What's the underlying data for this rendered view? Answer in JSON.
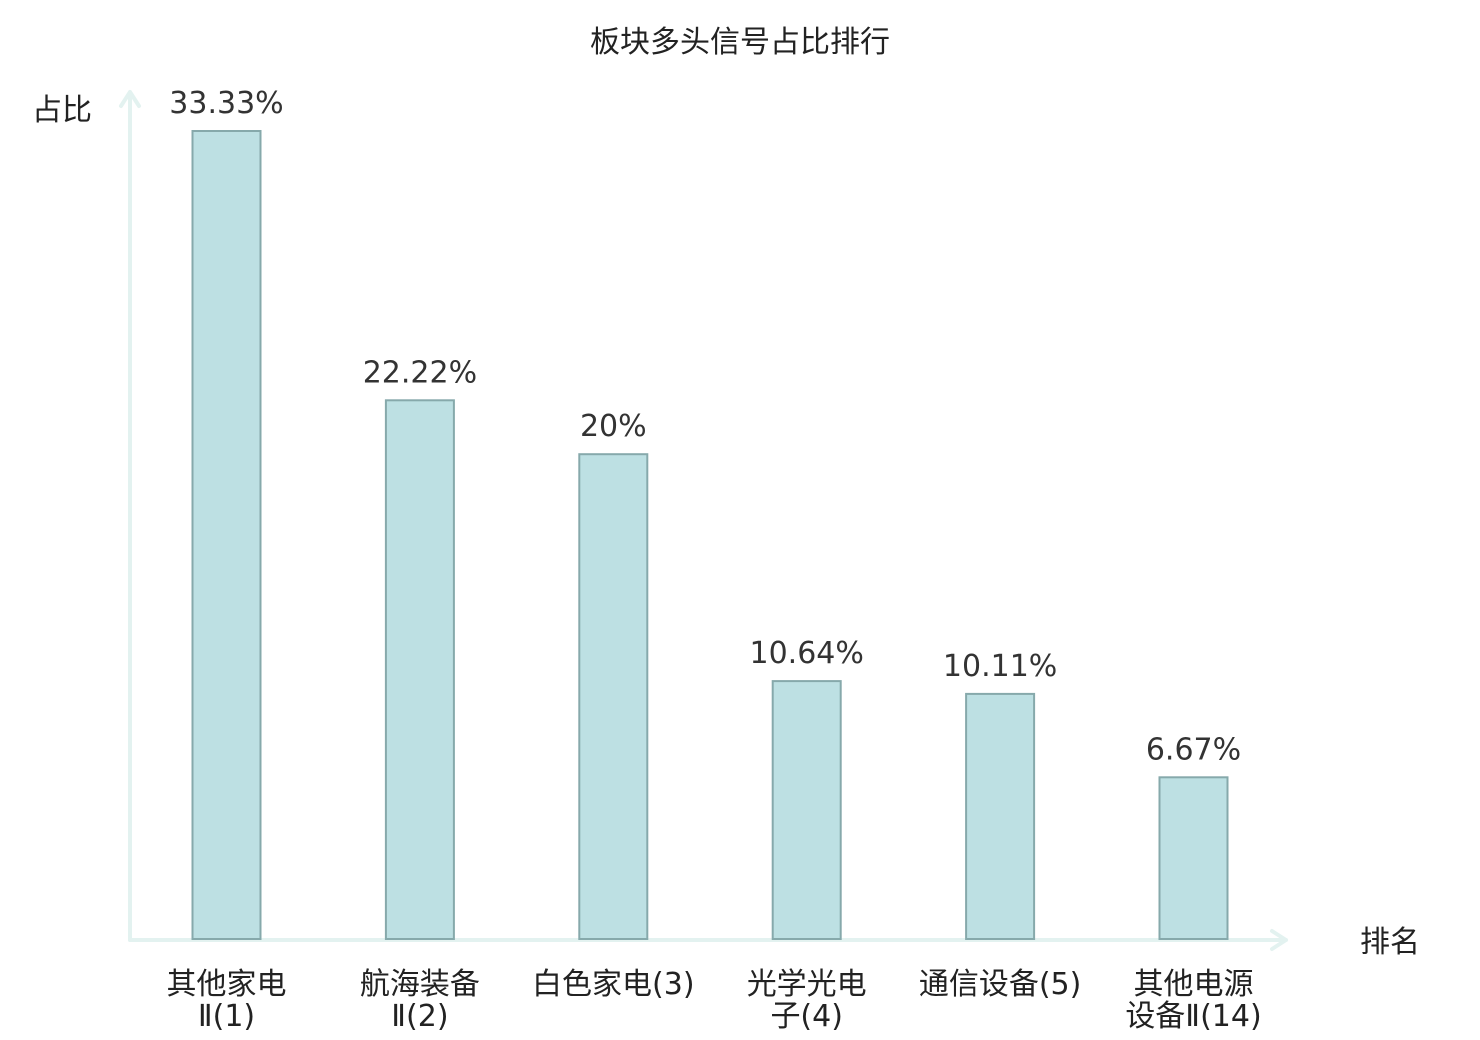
{
  "chart_data": {
    "type": "bar",
    "title": "板块多头信号占比排行",
    "xlabel": "排名",
    "ylabel": "占比",
    "categories": [
      [
        "其他家电",
        "Ⅱ(1)"
      ],
      [
        "航海装备",
        "Ⅱ(2)"
      ],
      [
        "白色家电(3)"
      ],
      [
        "光学光电",
        "子(4)"
      ],
      [
        "通信设备(5)"
      ],
      [
        "其他电源",
        "设备Ⅱ(14)"
      ]
    ],
    "values": [
      33.33,
      22.22,
      20,
      10.64,
      10.11,
      6.67
    ],
    "value_labels": [
      "33.33%",
      "22.22%",
      "20%",
      "10.64%",
      "10.11%",
      "6.67%"
    ],
    "highlight_index": 5,
    "ylim": [
      0,
      35
    ],
    "grid": false,
    "colors": {
      "bar_fill": "#bde0e3",
      "bar_stroke": "#86a9ab",
      "axis": "#e3f2f0",
      "highlight_label": "#e02020",
      "label": "#222222",
      "value_label": "#333333"
    }
  }
}
